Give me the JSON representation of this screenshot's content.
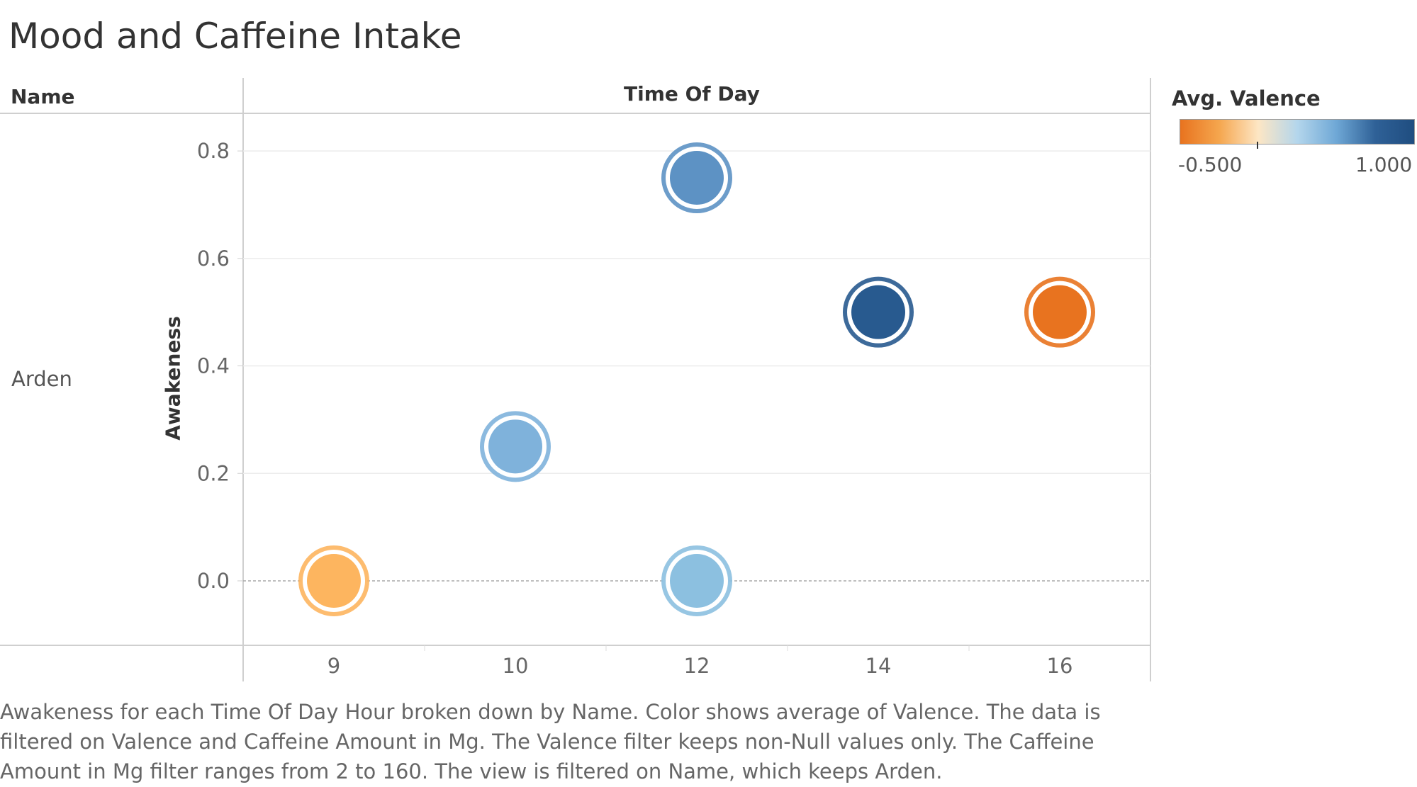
{
  "title": "Mood and Caffeine Intake",
  "headers": {
    "name": "Name",
    "time_of_day": "Time Of Day"
  },
  "row_label": "Arden",
  "legend": {
    "title": "Avg. Valence",
    "min_label": "-0.500",
    "max_label": "1.000",
    "colors": [
      "#e8731f",
      "#f5a64e",
      "#fde6c4",
      "#b4d6ec",
      "#6fa8d6",
      "#2f6197",
      "#1f4d80"
    ]
  },
  "caption": "Awakeness for each Time Of Day Hour broken down by Name.  Color shows average of Valence. The data is filtered on Valence and Caffeine Amount in Mg. The Valence filter keeps non-Null values only. The Caffeine Amount in Mg filter ranges from 2 to 160. The view is filtered on Name, which keeps Arden.",
  "chart_data": {
    "type": "scatter",
    "title": "Mood and Caffeine Intake",
    "xlabel": "Time Of Day",
    "ylabel": "Awakeness",
    "x_categories": [
      "9",
      "10",
      "12",
      "14",
      "16"
    ],
    "y_ticks": [
      "0.0",
      "0.2",
      "0.4",
      "0.6",
      "0.8"
    ],
    "ylim": [
      -0.12,
      0.87
    ],
    "grid": true,
    "legend_position": "top-right",
    "color_scale": {
      "name": "Avg. Valence",
      "min": -0.5,
      "max": 1.0
    },
    "points": [
      {
        "x": "9",
        "y": 0.0,
        "valence": -0.2,
        "color": "#fdb55f"
      },
      {
        "x": "10",
        "y": 0.25,
        "valence": 0.35,
        "color": "#7fb2db"
      },
      {
        "x": "12",
        "y": 0.75,
        "valence": 0.6,
        "color": "#5d92c4"
      },
      {
        "x": "12",
        "y": 0.0,
        "valence": 0.25,
        "color": "#8cc0e0"
      },
      {
        "x": "14",
        "y": 0.5,
        "valence": 1.0,
        "color": "#285a8f"
      },
      {
        "x": "16",
        "y": 0.5,
        "valence": -0.5,
        "color": "#e8731f"
      }
    ]
  }
}
